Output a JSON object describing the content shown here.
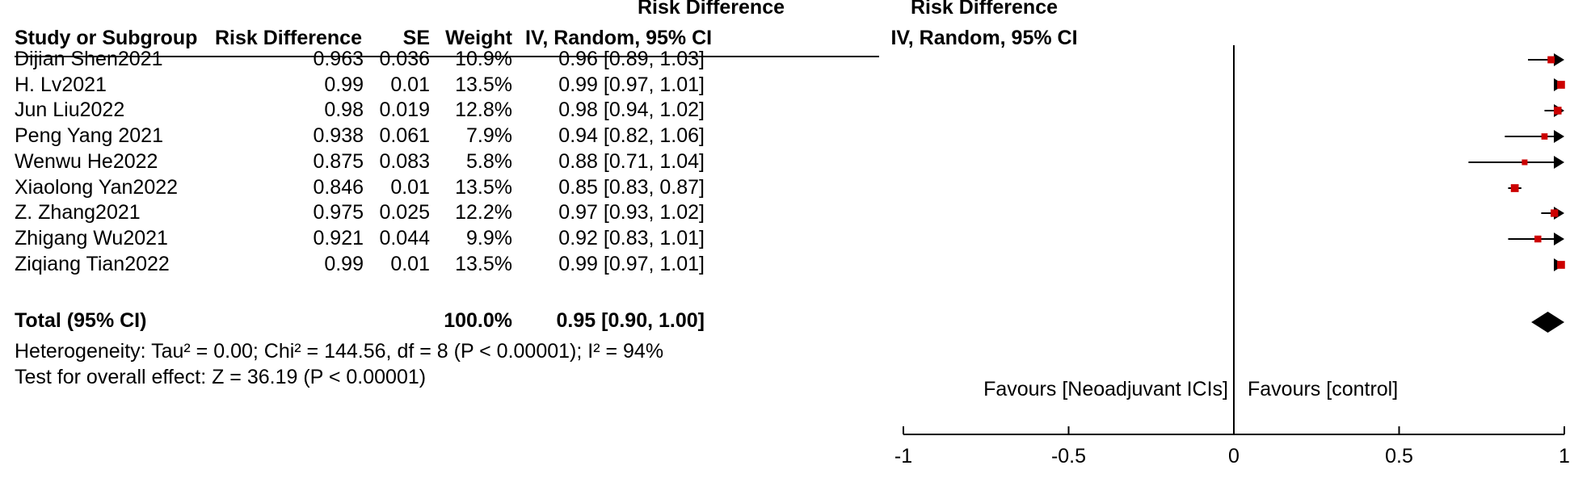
{
  "headers": {
    "group_left_top": "Risk Difference",
    "group_right_top": "Risk Difference",
    "study": "Study or Subgroup",
    "rd": "Risk Difference",
    "se": "SE",
    "weight": "Weight",
    "ci_left": "IV, Random, 95% CI",
    "ci_right": "IV, Random, 95% CI"
  },
  "studies": [
    {
      "name": "Dijian Shen2021",
      "rd": "0.963",
      "se": "0.036",
      "weight": "10.9%",
      "ci": "0.96 [0.89, 1.03]"
    },
    {
      "name": "H. Lv2021",
      "rd": "0.99",
      "se": "0.01",
      "weight": "13.5%",
      "ci": "0.99 [0.97, 1.01]"
    },
    {
      "name": "Jun Liu2022",
      "rd": "0.98",
      "se": "0.019",
      "weight": "12.8%",
      "ci": "0.98 [0.94, 1.02]"
    },
    {
      "name": "Peng Yang 2021",
      "rd": "0.938",
      "se": "0.061",
      "weight": "7.9%",
      "ci": "0.94 [0.82, 1.06]"
    },
    {
      "name": "Wenwu He2022",
      "rd": "0.875",
      "se": "0.083",
      "weight": "5.8%",
      "ci": "0.88 [0.71, 1.04]"
    },
    {
      "name": "Xiaolong Yan2022",
      "rd": "0.846",
      "se": "0.01",
      "weight": "13.5%",
      "ci": "0.85 [0.83, 0.87]"
    },
    {
      "name": "Z. Zhang2021",
      "rd": "0.975",
      "se": "0.025",
      "weight": "12.2%",
      "ci": "0.97 [0.93, 1.02]"
    },
    {
      "name": "Zhigang Wu2021",
      "rd": "0.921",
      "se": "0.044",
      "weight": "9.9%",
      "ci": "0.92 [0.83, 1.01]"
    },
    {
      "name": "Ziqiang Tian2022",
      "rd": "0.99",
      "se": "0.01",
      "weight": "13.5%",
      "ci": "0.99 [0.97, 1.01]"
    }
  ],
  "total": {
    "label": "Total (95% CI)",
    "weight": "100.0%",
    "ci": "0.95 [0.90, 1.00]"
  },
  "heterogeneity": "Heterogeneity: Tau² = 0.00; Chi² = 144.56, df = 8 (P < 0.00001); I² = 94%",
  "overall_effect": "Test for overall effect: Z = 36.19 (P < 0.00001)",
  "favours_left": "Favours [Neoadjuvant ICIs]",
  "favours_right": "Favours [control]",
  "chart_data": {
    "type": "forest",
    "xlim": [
      -1,
      1
    ],
    "ticks": [
      {
        "value": -1,
        "label": "-1"
      },
      {
        "value": -0.5,
        "label": "-0.5"
      },
      {
        "value": 0,
        "label": "0"
      },
      {
        "value": 0.5,
        "label": "0.5"
      },
      {
        "value": 1,
        "label": "1"
      }
    ],
    "studies": [
      {
        "estimate": 0.96,
        "lower": 0.89,
        "upper": 1.03,
        "weight": 10.9
      },
      {
        "estimate": 0.99,
        "lower": 0.97,
        "upper": 1.01,
        "weight": 13.5
      },
      {
        "estimate": 0.98,
        "lower": 0.94,
        "upper": 1.02,
        "weight": 12.8
      },
      {
        "estimate": 0.94,
        "lower": 0.82,
        "upper": 1.06,
        "weight": 7.9
      },
      {
        "estimate": 0.88,
        "lower": 0.71,
        "upper": 1.04,
        "weight": 5.8
      },
      {
        "estimate": 0.85,
        "lower": 0.83,
        "upper": 0.87,
        "weight": 13.5
      },
      {
        "estimate": 0.97,
        "lower": 0.93,
        "upper": 1.02,
        "weight": 12.2
      },
      {
        "estimate": 0.92,
        "lower": 0.83,
        "upper": 1.01,
        "weight": 9.9
      },
      {
        "estimate": 0.99,
        "lower": 0.97,
        "upper": 1.01,
        "weight": 13.5
      }
    ],
    "total": {
      "estimate": 0.95,
      "lower": 0.9,
      "upper": 1.0
    },
    "colors": {
      "point": "#cc0000",
      "line": "#000000",
      "diamond": "#000000"
    }
  }
}
